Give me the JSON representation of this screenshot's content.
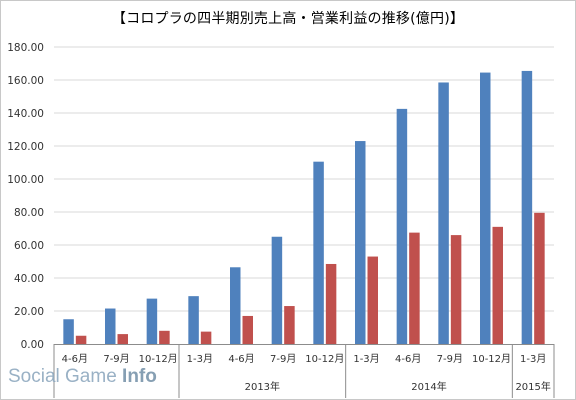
{
  "title": "【コロプラの四半期別売上高・営業利益の推移(億円)】",
  "watermark": {
    "text": "Social Game ",
    "bold": "Info"
  },
  "chart_data": {
    "type": "bar",
    "categories": [
      "4-6月",
      "7-9月",
      "10-12月",
      "1-3月",
      "4-6月",
      "7-9月",
      "10-12月",
      "1-3月",
      "4-6月",
      "7-9月",
      "10-12月",
      "1-3月"
    ],
    "year_groups": [
      {
        "label": "",
        "span": 3
      },
      {
        "label": "2013年",
        "span": 4
      },
      {
        "label": "2014年",
        "span": 4
      },
      {
        "label": "2015年",
        "span": 1
      }
    ],
    "series": [
      {
        "values": [
          15.0,
          21.5,
          27.5,
          29.0,
          46.5,
          65.0,
          110.5,
          123.0,
          142.5,
          158.5,
          164.5,
          165.5
        ],
        "color": "#4f81bd"
      },
      {
        "values": [
          5.0,
          6.0,
          8.0,
          7.5,
          17.0,
          23.0,
          48.5,
          53.0,
          67.5,
          66.0,
          71.0,
          79.5
        ],
        "color": "#c0504d"
      }
    ],
    "ylim": [
      0,
      180
    ],
    "yticks": [
      "0.00",
      "20.00",
      "40.00",
      "60.00",
      "80.00",
      "100.00",
      "120.00",
      "140.00",
      "160.00",
      "180.00"
    ],
    "grid": true
  }
}
